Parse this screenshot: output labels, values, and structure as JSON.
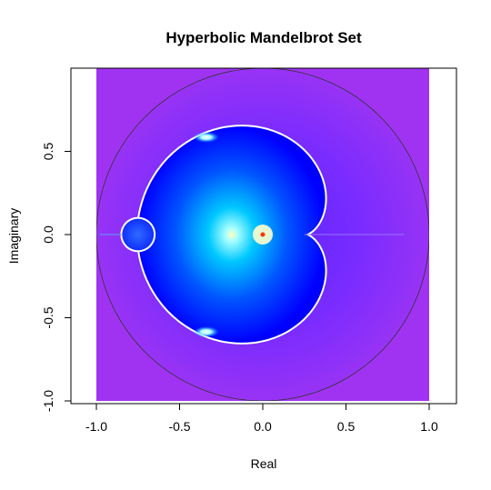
{
  "chart_data": {
    "type": "heatmap",
    "title": "Hyperbolic Mandelbrot Set",
    "xlabel": "Real",
    "ylabel": "Imaginary",
    "xlim": [
      -1.0,
      1.0
    ],
    "ylim": [
      -1.0,
      1.0
    ],
    "x_ticks": [
      -1.0,
      -0.5,
      0.0,
      0.5,
      1.0
    ],
    "x_tick_labels": [
      "-1.0",
      "-0.5",
      "0.0",
      "0.5",
      "1.0"
    ],
    "y_ticks": [
      -1.0,
      -0.5,
      0.0,
      0.5
    ],
    "y_tick_labels": [
      "-1.0",
      "-0.5",
      "0.0",
      "0.5"
    ],
    "grid": false,
    "legend": "none",
    "boundary_circle": {
      "center": [
        0,
        0
      ],
      "radius": 1.0,
      "color": "#333333"
    },
    "colors": {
      "outside": "#a033f2",
      "exterior_glow": "#7f2cff",
      "boundary": "#ffffff",
      "interior_edge": "#0000ff",
      "interior_mid": "#00aaff",
      "center": "#ffffaa",
      "center_point": "#ff3300"
    }
  }
}
